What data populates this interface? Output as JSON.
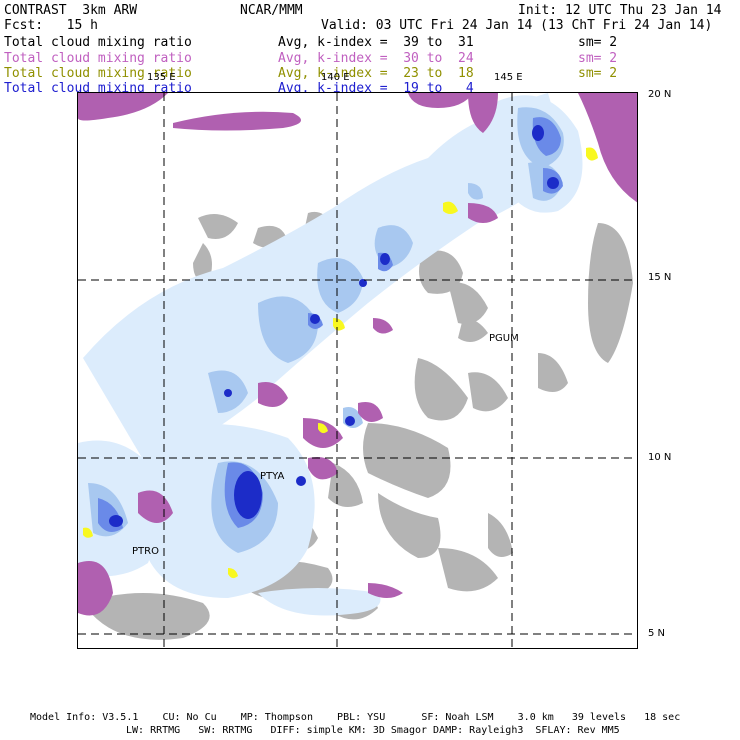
{
  "header": {
    "title": "CONTRAST  3km ARW",
    "center": "NCAR/MMM",
    "init": "Init: 12 UTC Thu 23 Jan 14",
    "fcst": "Fcst:   15 h",
    "valid": "Valid: 03 UTC Fri 24 Jan 14 (13 ChT Fri 24 Jan 14)"
  },
  "legend": [
    {
      "field": "Total cloud mixing ratio",
      "range": "Avg, k-index =  39 to  31",
      "sm": "sm= 2",
      "color": "#000000"
    },
    {
      "field": "Total cloud mixing ratio",
      "range": "Avg, k-index =  30 to  24",
      "sm": "sm= 2",
      "color": "#c060c0"
    },
    {
      "field": "Total cloud mixing ratio",
      "range": "Avg, k-index =  23 to  18",
      "sm": "sm= 2",
      "color": "#909000"
    },
    {
      "field": "Total cloud mixing ratio",
      "range": "Avg, k-index =  19 to   4",
      "sm": "",
      "color": "#2020d0"
    }
  ],
  "axes": {
    "lon_labels": [
      "135 E",
      "140 E",
      "145 E"
    ],
    "lat_labels": [
      "20 N",
      "15 N",
      "10 N",
      "5 N"
    ]
  },
  "stations": [
    "PGUM",
    "PTYA",
    "PTRO"
  ],
  "footer": {
    "line1": "Model Info: V3.5.1    CU: No Cu    MP: Thompson    PBL: YSU      SF: Noah LSM    3.0 km   39 levels   18 sec",
    "line2": "LW: RRTMG   SW: RRTMG   DIFF: simple KM: 3D Smagor DAMP: Rayleigh3  SFLAY: Rev MM5"
  },
  "colors": {
    "gray": "#b4b4b4",
    "purple": "#b060b0",
    "yellow": "#f8f820",
    "light_blue": "#dcecfc",
    "mid_blue": "#a8c8f0",
    "blue": "#6a8ae8",
    "dark_blue": "#1c2cc8"
  }
}
